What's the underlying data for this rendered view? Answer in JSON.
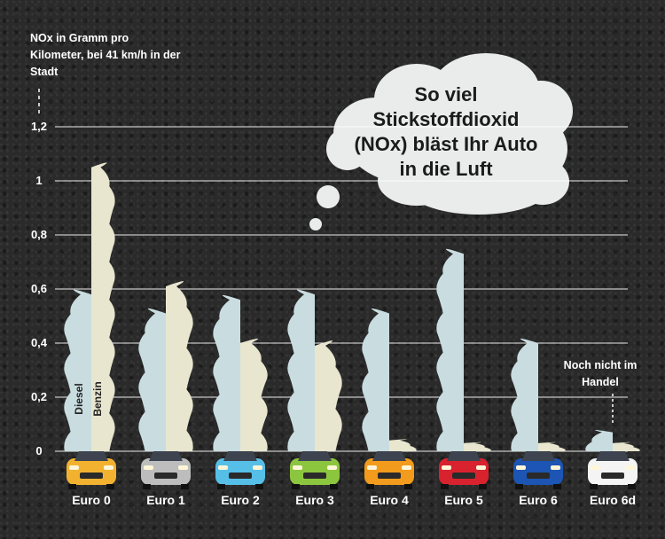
{
  "chart_data": {
    "type": "bar",
    "title": "So viel Stickstoffdioxid (NOx) bläst Ihr Auto in die Luft",
    "ylabel": "NOx in Gramm pro Kilometer, bei 41 km/h in der Stadt",
    "ylim": [
      0,
      1.2
    ],
    "yticks": [
      "0",
      "0,2",
      "0,4",
      "0,6",
      "0,8",
      "1",
      "1,2"
    ],
    "categories": [
      "Euro 0",
      "Euro 1",
      "Euro 2",
      "Euro 3",
      "Euro 4",
      "Euro 5",
      "Euro 6",
      "Euro 6d"
    ],
    "series": [
      {
        "name": "Diesel",
        "values": [
          0.58,
          0.51,
          0.56,
          0.58,
          0.51,
          0.73,
          0.4,
          0.07
        ],
        "color": "#c9dde0"
      },
      {
        "name": "Benzin",
        "values": [
          1.05,
          0.61,
          0.4,
          0.39,
          0.04,
          0.03,
          0.03,
          0.03
        ],
        "color": "#e8e6cf"
      }
    ],
    "annotation": "Noch nicht im Handel",
    "car_colors": [
      "#f2b230",
      "#bdbdbd",
      "#56bfe8",
      "#8cc63f",
      "#f29b1c",
      "#d8232f",
      "#1c55b3",
      "#f4f4f4"
    ],
    "grid": true
  }
}
